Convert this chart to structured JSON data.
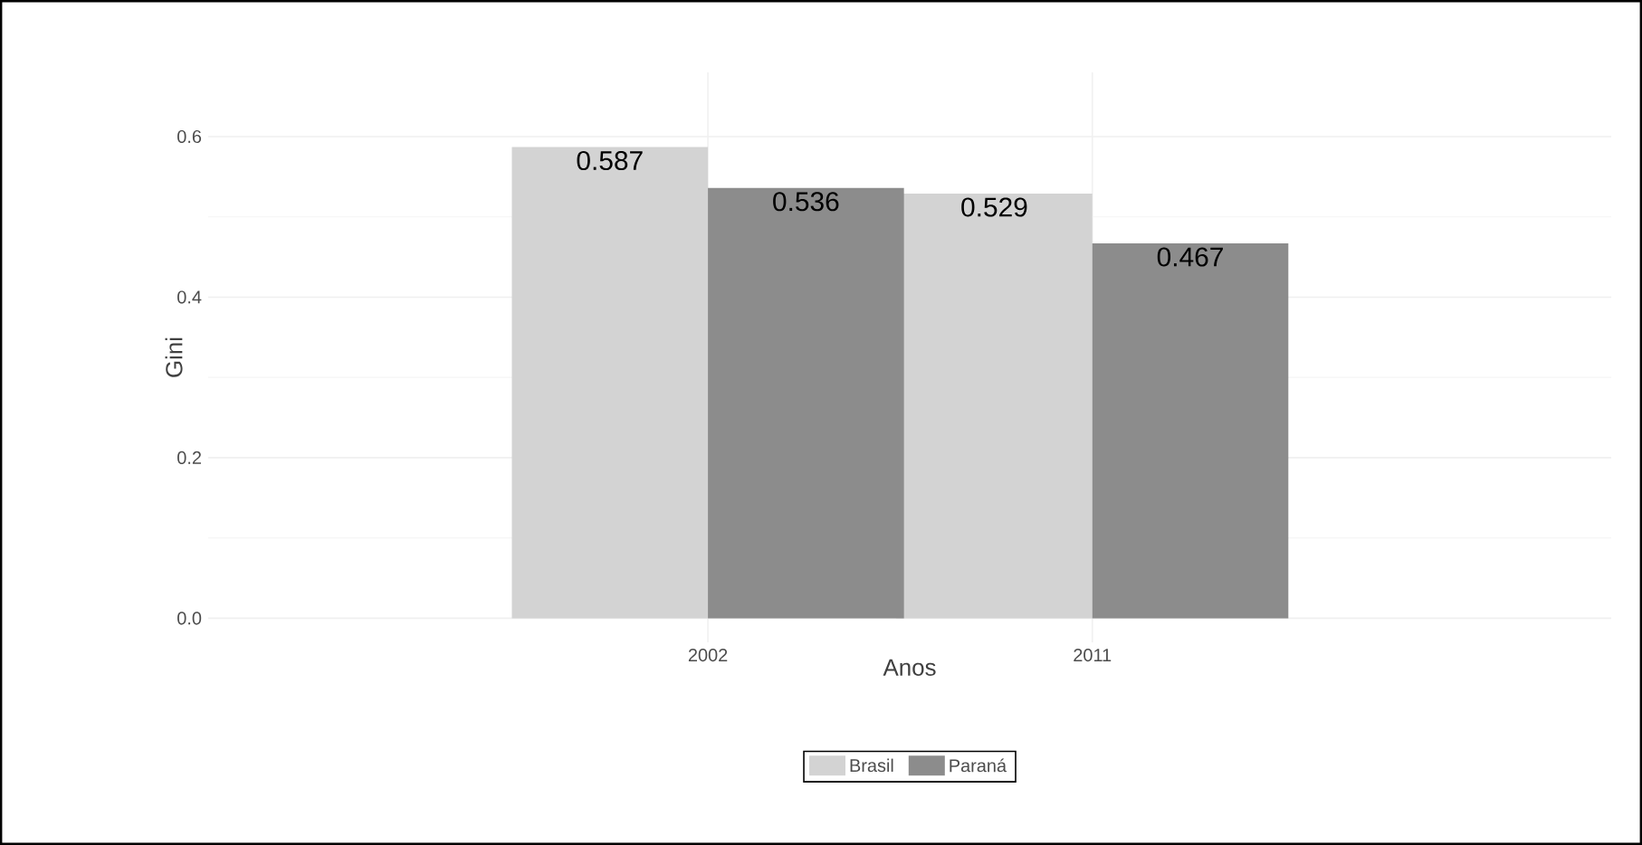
{
  "chart_data": {
    "type": "bar",
    "xlabel": "Anos",
    "ylabel": "Gini",
    "categories": [
      "2002",
      "2011"
    ],
    "series": [
      {
        "name": "Brasil",
        "color": "#d3d3d3",
        "values": [
          0.587,
          0.529
        ]
      },
      {
        "name": "Paraná",
        "color": "#8c8c8c",
        "values": [
          0.536,
          0.467
        ]
      }
    ],
    "ylim": [
      -0.03,
      0.68
    ],
    "yticks": [
      {
        "value": 0,
        "label": "0.0"
      },
      {
        "value": 0.2,
        "label": "0.2"
      },
      {
        "value": 0.4,
        "label": "0.4"
      },
      {
        "value": 0.6,
        "label": "0.6"
      }
    ],
    "grid": true,
    "legend": "bottom",
    "data_labels": true
  }
}
